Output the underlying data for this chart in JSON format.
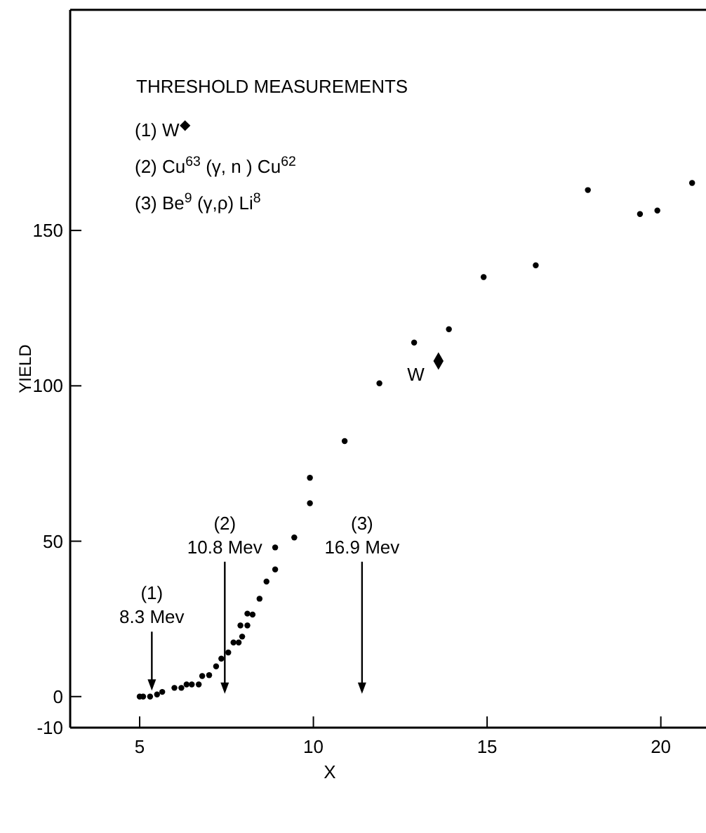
{
  "chart_data": {
    "type": "scatter",
    "title": "THRESHOLD MEASUREMENTS",
    "xlabel": "X",
    "ylabel": "YIELD",
    "xlim": [
      3,
      21.3
    ],
    "ylim": [
      -10,
      221
    ],
    "xticks": [
      5,
      10,
      15,
      20
    ],
    "yticks": [
      -10,
      0,
      50,
      100,
      150
    ],
    "grid": false,
    "marker": "circle",
    "annotations": [
      "(1) W$^{◆}$",
      "(2) Cu$^{63}$ (γ, n ) Cu$^{62}$",
      "(3) Be$^{9}$ (γ,ρ) Li$^{8}$",
      {
        "text": "(1)\n8.3 Mev",
        "x": 5.35,
        "y": 1
      }
    ],
    "ref_lines": [
      {
        "axis": "x",
        "value": 7.45,
        "label": "(2)\n10.8 Mev"
      },
      {
        "axis": "x",
        "value": 11.4,
        "label": "(3)\n16.9 Mev"
      }
    ],
    "series": [
      {
        "color": "#000000",
        "x": [
          5.0,
          5.1,
          5.3,
          5.5,
          5.65,
          6.0,
          6.2,
          6.35,
          6.5,
          6.7,
          6.8,
          7.0,
          7.2,
          7.35,
          7.55,
          7.7,
          7.85,
          7.95,
          7.9,
          8.1,
          8.1,
          8.25,
          8.45,
          8.65,
          8.9,
          8.9,
          9.45,
          9.9,
          9.9,
          10.9,
          11.9,
          12.9,
          13.9,
          14.9,
          16.4,
          17.9,
          19.4,
          19.9,
          20.9
        ],
        "values": [
          0,
          0,
          0,
          0.7,
          1.5,
          2.8,
          2.8,
          3.9,
          3.9,
          3.9,
          6.6,
          6.9,
          9.7,
          12.2,
          14.2,
          17.4,
          17.4,
          19.3,
          22.9,
          22.9,
          26.7,
          26.4,
          31.5,
          37,
          40.9,
          48,
          51.2,
          62.2,
          70.4,
          82.2,
          100.8,
          113.9,
          118.2,
          135,
          138.8,
          163,
          155.3,
          156.4,
          165.3
        ]
      },
      {
        "name": "W",
        "color": "#000000",
        "marker": "diamond",
        "x": [
          13.6
        ],
        "values": [
          108
        ]
      }
    ]
  }
}
